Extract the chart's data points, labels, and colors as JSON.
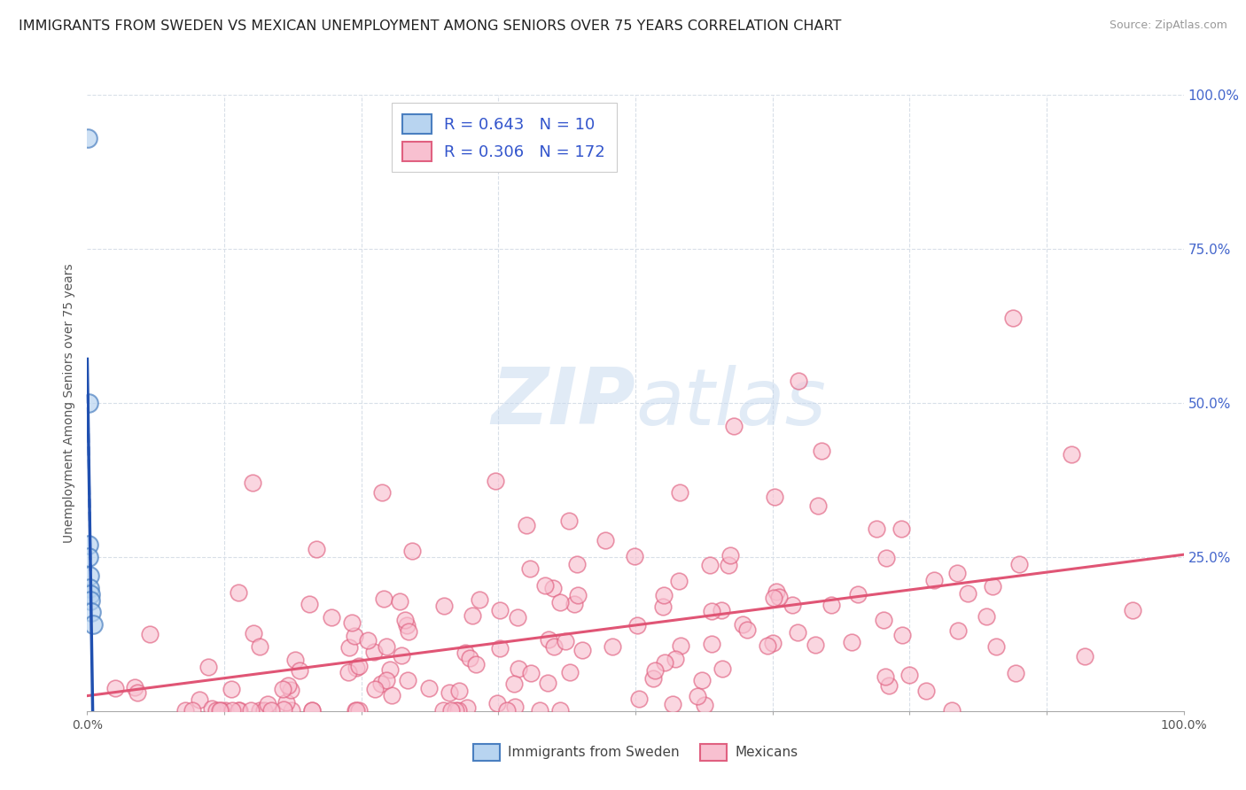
{
  "title": "IMMIGRANTS FROM SWEDEN VS MEXICAN UNEMPLOYMENT AMONG SENIORS OVER 75 YEARS CORRELATION CHART",
  "source": "Source: ZipAtlas.com",
  "ylabel": "Unemployment Among Seniors over 75 years",
  "xlim": [
    0.0,
    1.0
  ],
  "ylim": [
    0.0,
    1.0
  ],
  "blue_R": 0.643,
  "blue_N": 10,
  "pink_R": 0.306,
  "pink_N": 172,
  "blue_color": "#b8d4f0",
  "blue_edge_color": "#4a7fc0",
  "pink_color": "#f8c0d0",
  "pink_edge_color": "#e06080",
  "blue_line_color": "#2050b0",
  "pink_line_color": "#e05575",
  "watermark_zip": "ZIP",
  "watermark_atlas": "atlas",
  "legend_label_sweden": "Immigrants from Sweden",
  "legend_label_mexicans": "Mexicans",
  "blue_scatter_x": [
    0.0008,
    0.001,
    0.0013,
    0.0015,
    0.002,
    0.0022,
    0.0025,
    0.003,
    0.004,
    0.005
  ],
  "blue_scatter_y": [
    0.93,
    0.5,
    0.27,
    0.25,
    0.22,
    0.2,
    0.19,
    0.18,
    0.16,
    0.14
  ],
  "pink_intercept": 0.03,
  "pink_slope": 0.18,
  "background_color": "#ffffff",
  "grid_color": "#d8dfe8",
  "title_fontsize": 11.5,
  "axis_label_fontsize": 10,
  "legend_fontsize": 13,
  "ytick_values": [
    0.0,
    0.25,
    0.5,
    0.75,
    1.0
  ],
  "ytick_labels_right": [
    "",
    "25.0%",
    "50.0%",
    "75.0%",
    "100.0%"
  ],
  "xtick_positions": [
    0.0,
    0.125,
    0.25,
    0.375,
    0.5,
    0.625,
    0.75,
    0.875,
    1.0
  ]
}
